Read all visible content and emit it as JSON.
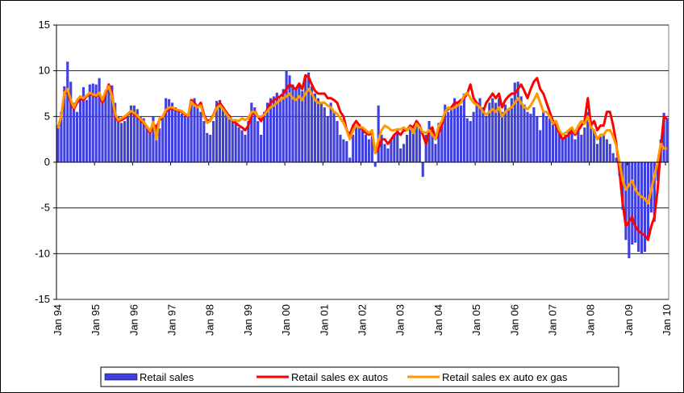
{
  "chart_data": {
    "type": "bar-line",
    "categories": [
      "Jan 94",
      null,
      null,
      null,
      null,
      null,
      null,
      null,
      null,
      null,
      null,
      null,
      "Jan 95",
      null,
      null,
      null,
      null,
      null,
      null,
      null,
      null,
      null,
      null,
      null,
      "Jan 96",
      null,
      null,
      null,
      null,
      null,
      null,
      null,
      null,
      null,
      null,
      null,
      "Jan 97",
      null,
      null,
      null,
      null,
      null,
      null,
      null,
      null,
      null,
      null,
      null,
      "Jan 98",
      null,
      null,
      null,
      null,
      null,
      null,
      null,
      null,
      null,
      null,
      null,
      "Jan 99",
      null,
      null,
      null,
      null,
      null,
      null,
      null,
      null,
      null,
      null,
      null,
      "Jan 00",
      null,
      null,
      null,
      null,
      null,
      null,
      null,
      null,
      null,
      null,
      null,
      "Jan 01",
      null,
      null,
      null,
      null,
      null,
      null,
      null,
      null,
      null,
      null,
      null,
      "Jan 02",
      null,
      null,
      null,
      null,
      null,
      null,
      null,
      null,
      null,
      null,
      null,
      "Jan 03",
      null,
      null,
      null,
      null,
      null,
      null,
      null,
      null,
      null,
      null,
      null,
      "Jan 04",
      null,
      null,
      null,
      null,
      null,
      null,
      null,
      null,
      null,
      null,
      null,
      "Jan 05",
      null,
      null,
      null,
      null,
      null,
      null,
      null,
      null,
      null,
      null,
      null,
      "Jan 06",
      null,
      null,
      null,
      null,
      null,
      null,
      null,
      null,
      null,
      null,
      null,
      "Jan 07",
      null,
      null,
      null,
      null,
      null,
      null,
      null,
      null,
      null,
      null,
      null,
      "Jan 08",
      null,
      null,
      null,
      null,
      null,
      null,
      null,
      null,
      null,
      null,
      null,
      "Jan 09",
      null,
      null,
      null,
      null,
      null,
      null,
      null,
      null,
      null,
      null,
      null,
      "Jan 10"
    ],
    "series": [
      {
        "name": "Retail sales",
        "kind": "bar",
        "color": "#4040dd",
        "values": [
          4,
          5.5,
          8.3,
          11,
          8.8,
          6.5,
          5.5,
          7,
          8.2,
          6.8,
          8.5,
          8.6,
          8.5,
          9.2,
          7,
          7.8,
          8.5,
          8.4,
          6.5,
          5,
          4.3,
          4.5,
          5,
          6.2,
          6.2,
          5.8,
          5,
          4.8,
          4,
          3.5,
          5,
          4,
          3.7,
          5,
          7,
          6.9,
          6.5,
          6,
          5.5,
          5.3,
          5,
          5.2,
          6.8,
          7,
          6.2,
          5.5,
          4.5,
          3.2,
          3,
          4.5,
          6.7,
          6.8,
          6,
          5.5,
          5.2,
          4.5,
          4.2,
          3.8,
          3.5,
          3,
          4.5,
          6.5,
          6,
          4.5,
          3,
          5.5,
          6.5,
          7,
          7.2,
          7.6,
          7,
          8,
          10,
          9.5,
          8.5,
          8,
          8.5,
          7.8,
          9.5,
          9.8,
          8.3,
          7.5,
          7,
          6.5,
          6,
          5,
          6.5,
          5.5,
          4.5,
          3,
          2.5,
          2.3,
          0.5,
          3,
          4,
          4.2,
          3.5,
          3,
          2.5,
          2.8,
          -0.5,
          6.2,
          3,
          2,
          1.5,
          2.5,
          3,
          3.5,
          1.5,
          2,
          3,
          4,
          3.5,
          4.5,
          4,
          -1.6,
          3,
          4.5,
          3.5,
          2,
          4.3,
          4,
          6.3,
          5.5,
          5.8,
          7,
          6.5,
          6.2,
          7.5,
          4.8,
          4.5,
          5.5,
          6.5,
          7,
          6,
          5,
          6.5,
          7,
          6.5,
          7,
          5.5,
          6.3,
          5.8,
          7,
          8.7,
          8.8,
          7.2,
          6.3,
          5.5,
          5.3,
          6,
          5,
          3.5,
          5.5,
          5,
          4.8,
          4.5,
          4,
          3.5,
          2.5,
          3,
          3.5,
          3.8,
          2.5,
          3.5,
          3,
          3.8,
          5.5,
          4.5,
          3.5,
          2,
          2.8,
          3,
          2.5,
          2,
          1,
          0.5,
          -1.5,
          -5.2,
          -8.5,
          -10.5,
          -9,
          -8.8,
          -9.8,
          -10,
          -9.8,
          -8.5,
          -5.5,
          -6.5,
          -2,
          2.5,
          5.4,
          4.8
        ]
      },
      {
        "name": "Retail sales ex autos",
        "kind": "line",
        "color": "#ff0000",
        "values": [
          3.8,
          5,
          7.5,
          7.8,
          6.5,
          5.8,
          6.5,
          7,
          6.8,
          7.2,
          7.5,
          7.3,
          7.2,
          7.5,
          6.5,
          7.5,
          8.5,
          7.5,
          5,
          4.5,
          4.6,
          4.8,
          5.2,
          5.5,
          5.3,
          5,
          4.6,
          4.3,
          3.8,
          3.2,
          4.2,
          3.8,
          4.6,
          4.9,
          5.5,
          5.8,
          5.9,
          5.7,
          5.6,
          5.5,
          5.2,
          5,
          6.8,
          6.5,
          6,
          6.5,
          5.2,
          4.5,
          4.6,
          5.2,
          6,
          6.5,
          6,
          5.5,
          5,
          4.5,
          4.3,
          4,
          3.8,
          3.5,
          4,
          5.2,
          5.6,
          5,
          4.5,
          5.2,
          5.8,
          6.5,
          6.8,
          7,
          7.2,
          7.5,
          8,
          8.5,
          8.2,
          8,
          8.6,
          8,
          9.5,
          9.3,
          8.5,
          7.8,
          7.5,
          7.5,
          7.5,
          7,
          7,
          6.8,
          6.5,
          5.5,
          5,
          3.5,
          3,
          4,
          4.5,
          4,
          3.5,
          3.2,
          3,
          3.2,
          1,
          1.5,
          2.5,
          2.5,
          2,
          2.5,
          3,
          3.3,
          3,
          3.5,
          3.5,
          4,
          3.8,
          4.5,
          4,
          3,
          2,
          3.5,
          3.8,
          2.5,
          3.2,
          4,
          5.5,
          5.8,
          6,
          6.5,
          6.5,
          6.8,
          7,
          7.5,
          8.5,
          7,
          6.5,
          6,
          5.5,
          6.5,
          7,
          7.5,
          7,
          7.5,
          6,
          6.8,
          7.2,
          7.5,
          7.5,
          8,
          8.5,
          7.8,
          7,
          8,
          8.8,
          9.2,
          8,
          7.5,
          6.5,
          5.5,
          4.5,
          4,
          3.2,
          2.5,
          2.8,
          3,
          3.5,
          3,
          3.5,
          4,
          4.5,
          7,
          4,
          4.5,
          3.5,
          4,
          4,
          5.5,
          5.5,
          4,
          2,
          -1,
          -4.5,
          -7,
          -6.5,
          -6,
          -7,
          -7.5,
          -7.8,
          -8,
          -8.5,
          -7,
          -6,
          -3,
          1.5,
          5,
          4.7
        ]
      },
      {
        "name": "Retail sales ex auto ex gas",
        "kind": "line",
        "color": "#ff9900",
        "values": [
          3.7,
          5,
          7.6,
          8,
          6.8,
          6,
          6.8,
          7.2,
          7,
          7.3,
          7.6,
          7.4,
          7.3,
          7.6,
          6.8,
          7.8,
          8.3,
          7.2,
          5.3,
          4.6,
          4.8,
          5,
          5.3,
          5.6,
          5.4,
          5.1,
          4.7,
          4.4,
          3.9,
          3.4,
          4.4,
          2.5,
          4.8,
          5,
          5.7,
          6,
          6,
          5.8,
          5.7,
          5.6,
          5.3,
          5.1,
          6.6,
          6.2,
          6,
          6.2,
          5,
          4.3,
          4.5,
          5.1,
          5.9,
          6.2,
          5.8,
          5.3,
          4.8,
          4.6,
          4.6,
          4.5,
          4.8,
          4.6,
          4.8,
          5.5,
          5.5,
          5,
          5,
          5.2,
          5.6,
          6,
          6.2,
          6.5,
          6.8,
          7,
          7.2,
          7.5,
          7,
          6.8,
          7.2,
          6.8,
          7.5,
          8,
          7.5,
          6.8,
          6.5,
          6.5,
          6.5,
          6.2,
          6,
          5.5,
          5.3,
          4.8,
          4.3,
          3.5,
          2.5,
          3.5,
          4,
          3.8,
          3.8,
          3.5,
          3.2,
          3.5,
          1,
          2.5,
          3.5,
          4,
          3.8,
          3.5,
          3.5,
          3.6,
          3.6,
          3.8,
          3.5,
          3.8,
          3.2,
          4.2,
          3.8,
          3.3,
          3.2,
          3.5,
          3,
          2.5,
          4,
          4.5,
          5.5,
          6,
          5.8,
          6,
          6.2,
          6.5,
          7.3,
          7.6,
          7,
          6.5,
          6.3,
          6,
          5.5,
          5.2,
          5.5,
          5.8,
          5.5,
          6,
          5,
          5.5,
          5.8,
          6,
          6.5,
          7,
          6.5,
          6,
          5.8,
          6.2,
          6.8,
          7.5,
          6.5,
          5.5,
          5.5,
          5,
          4.2,
          4.5,
          3.5,
          3,
          3.2,
          3.5,
          3.8,
          3.2,
          4,
          4.5,
          4.2,
          5,
          3.8,
          3.5,
          2.5,
          3,
          3,
          3.5,
          3.5,
          2.8,
          1.8,
          0,
          -2,
          -3,
          -2.5,
          -2,
          -3,
          -3.5,
          -3.8,
          -4,
          -4.5,
          -3,
          -1.5,
          0,
          2,
          1.5,
          1.5
        ]
      }
    ],
    "ylim": [
      -15,
      15
    ],
    "yticks": [
      -15,
      -10,
      -5,
      0,
      5,
      10,
      15
    ],
    "grid": true,
    "legend": "bottom"
  }
}
